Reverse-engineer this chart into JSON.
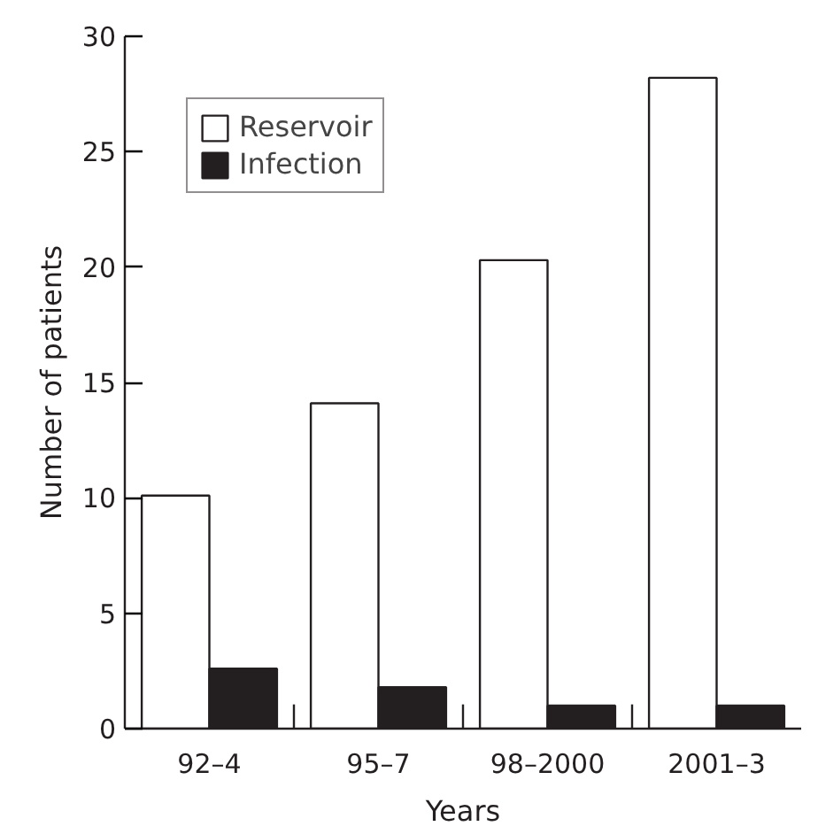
{
  "chart_data": {
    "type": "bar",
    "xlabel": "Years",
    "ylabel": "Number of patients",
    "categories": [
      "92–4",
      "95–7",
      "98–2000",
      "2001–3"
    ],
    "series": [
      {
        "name": "Reservoir",
        "color": "#ffffff",
        "values": [
          10.1,
          14.1,
          20.3,
          28.2
        ]
      },
      {
        "name": "Infection",
        "color": "#231f20",
        "values": [
          2.6,
          1.8,
          1.0,
          1.0
        ]
      }
    ],
    "ylim": [
      0,
      30
    ],
    "yticks": [
      0,
      5,
      10,
      15,
      20,
      25,
      30
    ],
    "grid": false,
    "legend": "top left"
  }
}
